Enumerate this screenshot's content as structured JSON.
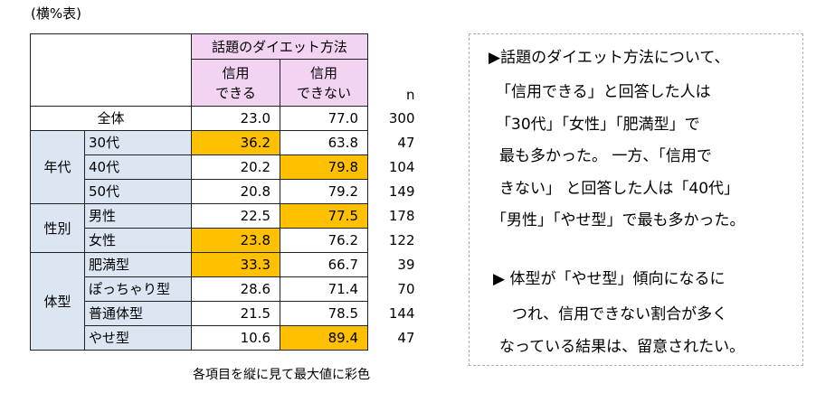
{
  "unit_label": "(横%表)",
  "table": {
    "group_header": "話題のダイエット方法",
    "col1_line1": "信用",
    "col1_line2": "できる",
    "col2_line1": "信用",
    "col2_line2": "できない",
    "n_header": "n",
    "total": {
      "label": "全体",
      "v1": "23.0",
      "v2": "77.0",
      "n": "300"
    },
    "groups": [
      {
        "name": "年代",
        "rows": [
          {
            "label": "30代",
            "v1": "36.2",
            "v2": "63.8",
            "n": "47",
            "hl": 1
          },
          {
            "label": "40代",
            "v1": "20.2",
            "v2": "79.8",
            "n": "104",
            "hl": 2
          },
          {
            "label": "50代",
            "v1": "20.8",
            "v2": "79.2",
            "n": "149",
            "hl": 0
          }
        ]
      },
      {
        "name": "性別",
        "rows": [
          {
            "label": "男性",
            "v1": "22.5",
            "v2": "77.5",
            "n": "178",
            "hl": 2
          },
          {
            "label": "女性",
            "v1": "23.8",
            "v2": "76.2",
            "n": "122",
            "hl": 1
          }
        ]
      },
      {
        "name": "体型",
        "rows": [
          {
            "label": "肥満型",
            "v1": "33.3",
            "v2": "66.7",
            "n": "39",
            "hl": 1
          },
          {
            "label": "ぽっちゃり型",
            "v1": "28.6",
            "v2": "71.4",
            "n": "70",
            "hl": 0
          },
          {
            "label": "普通体型",
            "v1": "21.5",
            "v2": "78.5",
            "n": "144",
            "hl": 0
          },
          {
            "label": "やせ型",
            "v1": "10.6",
            "v2": "89.4",
            "n": "47",
            "hl": 2
          }
        ]
      }
    ],
    "highlight_color": "#ffc000"
  },
  "note": "各項目を縦に見て最大値に彩色",
  "commentary": {
    "lines": [
      "▶話題のダイエット方法について、",
      "「信用できる」と回答した人は",
      "「30代」「女性」「肥満型」で",
      "最も多かった。 一方、「信用で",
      "きない」 と回答した人は「40代」",
      "「男性」「やせ型」で最も多かった。",
      "▶ 体型が「やせ型」傾向になるに",
      "つれ、信用できない割合が多く",
      "なっている結果は、留意されたい。"
    ]
  }
}
